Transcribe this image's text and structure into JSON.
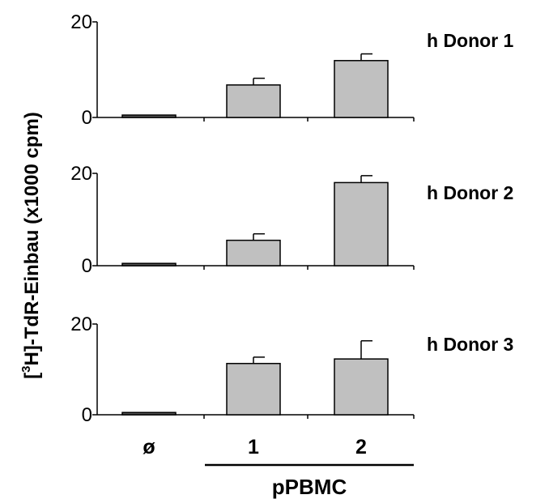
{
  "chart_data": [
    {
      "type": "bar",
      "panel_label": "h Donor 1",
      "categories": [
        "ø",
        "1",
        "2"
      ],
      "values": [
        0.5,
        6.8,
        11.9
      ],
      "errors": [
        0.0,
        1.4,
        1.4
      ],
      "ylim": [
        0,
        20
      ],
      "yticks": [
        "0",
        "20"
      ],
      "bar_color": "#c0c0c0"
    },
    {
      "type": "bar",
      "panel_label": "h Donor 2",
      "categories": [
        "ø",
        "1",
        "2"
      ],
      "values": [
        0.5,
        5.5,
        18.0
      ],
      "errors": [
        0.0,
        1.4,
        1.5
      ],
      "ylim": [
        0,
        20
      ],
      "yticks": [
        "0",
        "20"
      ],
      "bar_color": "#c0c0c0"
    },
    {
      "type": "bar",
      "panel_label": "h Donor 3",
      "categories": [
        "ø",
        "1",
        "2"
      ],
      "values": [
        0.5,
        11.3,
        12.3
      ],
      "errors": [
        0.0,
        1.4,
        4.0
      ],
      "ylim": [
        0,
        20
      ],
      "yticks": [
        "0",
        "20"
      ],
      "bar_color": "#c0c0c0"
    }
  ],
  "ylabel_main": "[",
  "ylabel_sup": "3",
  "ylabel_rest": "H]-TdR-Einbau (x1000 cpm)",
  "xtick_labels": [
    "ø",
    "1",
    "2"
  ],
  "group_label": "pPBMC"
}
